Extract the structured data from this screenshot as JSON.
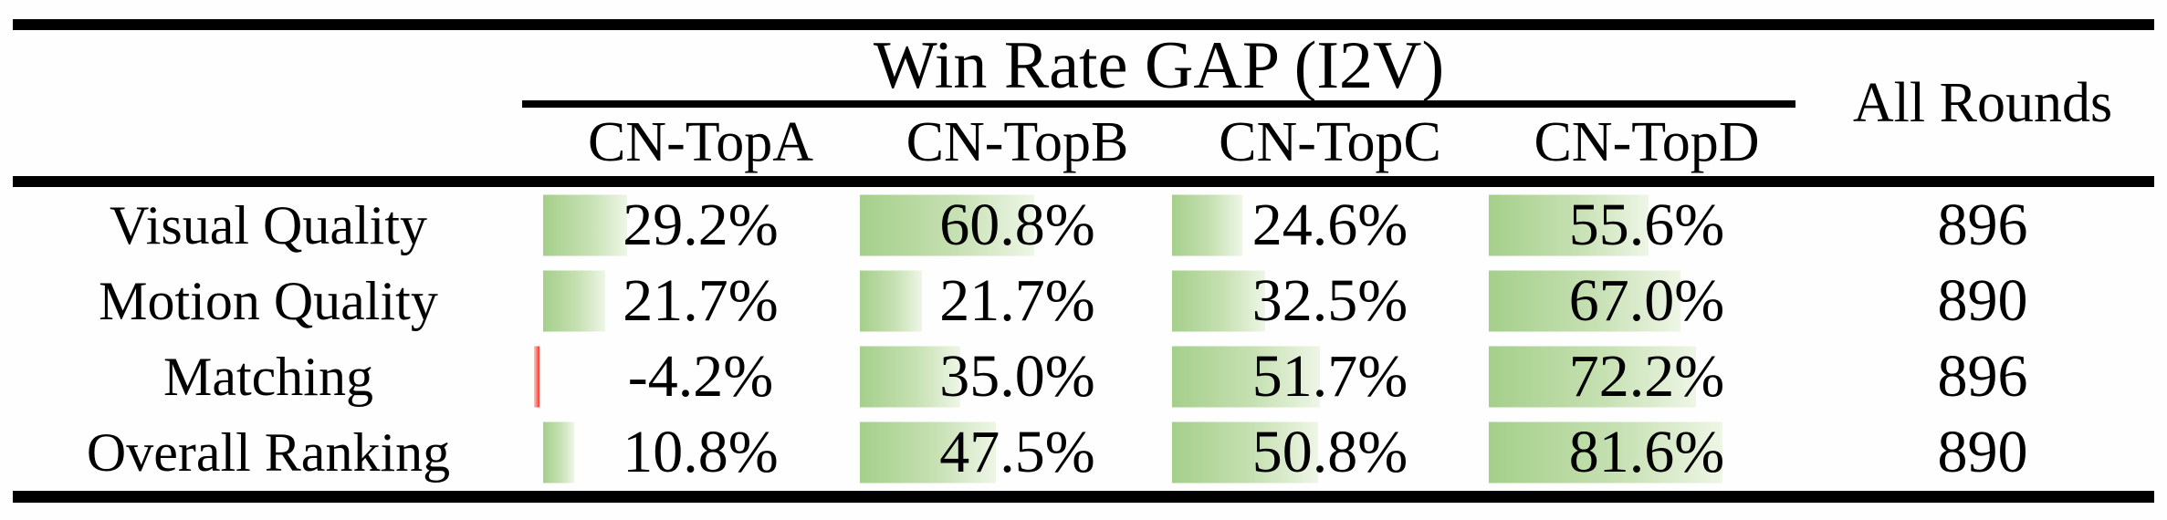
{
  "header": {
    "group_title": "Win Rate GAP (I2V)",
    "columns": [
      "CN-TopA",
      "CN-TopB",
      "CN-TopC",
      "CN-TopD"
    ],
    "all_rounds": "All Rounds"
  },
  "rows": [
    {
      "label": "Visual Quality",
      "cells": [
        "29.2%",
        "60.8%",
        "24.6%",
        "55.6%"
      ],
      "all_rounds": "896"
    },
    {
      "label": "Motion Quality",
      "cells": [
        "21.7%",
        "21.7%",
        "32.5%",
        "67.0%"
      ],
      "all_rounds": "890"
    },
    {
      "label": "Matching",
      "cells": [
        "-4.2%",
        "35.0%",
        "51.7%",
        "72.2%"
      ],
      "all_rounds": "896"
    },
    {
      "label": "Overall Ranking",
      "cells": [
        "10.8%",
        "47.5%",
        "50.8%",
        "81.6%"
      ],
      "all_rounds": "890"
    }
  ],
  "colors": {
    "positive_bar_left": "#a5cf8b",
    "positive_bar_mid": "#c6e0b2",
    "positive_bar_right": "#eef6e6",
    "negative_bar_left": "#ffc8c2",
    "negative_bar_right": "#fb352b",
    "rule_color": "#000000"
  },
  "chart_data": {
    "type": "table",
    "title": "Win Rate GAP (I2V)",
    "categories": [
      "CN-TopA",
      "CN-TopB",
      "CN-TopC",
      "CN-TopD"
    ],
    "row_header_column": "",
    "extra_column": "All Rounds",
    "series": [
      {
        "name": "Visual Quality",
        "values": [
          29.2,
          60.8,
          24.6,
          55.6
        ],
        "all_rounds": 896
      },
      {
        "name": "Motion Quality",
        "values": [
          21.7,
          21.7,
          32.5,
          67.0
        ],
        "all_rounds": 890
      },
      {
        "name": "Matching",
        "values": [
          -4.2,
          35.0,
          51.7,
          72.2
        ],
        "all_rounds": 896
      },
      {
        "name": "Overall Ranking",
        "values": [
          10.8,
          47.5,
          50.8,
          81.6
        ],
        "all_rounds": 890
      }
    ],
    "value_unit": "%",
    "bar_style": "in-cell gradient data bars, green for positive fading left-to-right, thin red bar for negative, bar length proportional to value"
  }
}
